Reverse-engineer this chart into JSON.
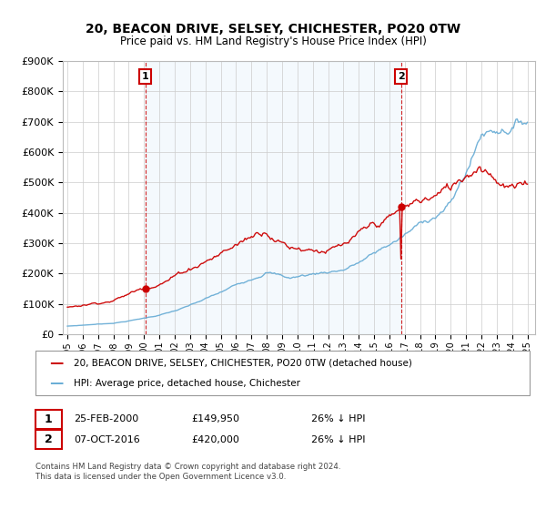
{
  "title": "20, BEACON DRIVE, SELSEY, CHICHESTER, PO20 0TW",
  "subtitle": "Price paid vs. HM Land Registry's House Price Index (HPI)",
  "sale1_date": "25-FEB-2000",
  "sale1_price": 149950,
  "sale1_label": "26% ↓ HPI",
  "sale2_date": "07-OCT-2016",
  "sale2_price": 420000,
  "sale2_label": "26% ↓ HPI",
  "legend_line1": "20, BEACON DRIVE, SELSEY, CHICHESTER, PO20 0TW (detached house)",
  "legend_line2": "HPI: Average price, detached house, Chichester",
  "footer": "Contains HM Land Registry data © Crown copyright and database right 2024.\nThis data is licensed under the Open Government Licence v3.0.",
  "hpi_color": "#6baed6",
  "price_color": "#cc0000",
  "vline_color": "#cc0000",
  "fill_color": "#ddeeff",
  "ylim": [
    0,
    900000
  ],
  "yticks": [
    0,
    100000,
    200000,
    300000,
    400000,
    500000,
    600000,
    700000,
    800000,
    900000
  ],
  "xlim_start": 1994.7,
  "xlim_end": 2025.5,
  "xtick_years": [
    1995,
    1996,
    1997,
    1998,
    1999,
    2000,
    2001,
    2002,
    2003,
    2004,
    2005,
    2006,
    2007,
    2008,
    2009,
    2010,
    2011,
    2012,
    2013,
    2014,
    2015,
    2016,
    2017,
    2018,
    2019,
    2020,
    2021,
    2022,
    2023,
    2024,
    2025
  ]
}
